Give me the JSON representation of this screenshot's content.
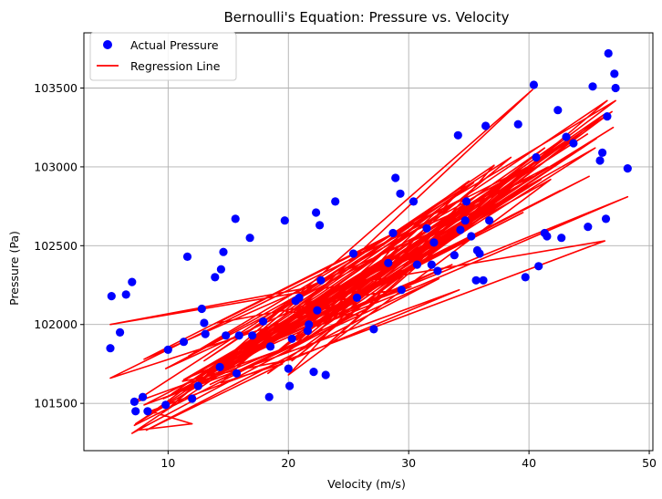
{
  "chart_data": {
    "type": "scatter",
    "title": "Bernoulli's Equation: Pressure vs. Velocity",
    "xlabel": "Velocity (m/s)",
    "ylabel": "Pressure (Pa)",
    "xlim": [
      3.0,
      50.3
    ],
    "ylim": [
      101200,
      103850
    ],
    "xticks": [
      10,
      20,
      30,
      40,
      50
    ],
    "yticks": [
      101500,
      102000,
      102500,
      103000,
      103500
    ],
    "grid": true,
    "legend_position": "top-left",
    "colors": {
      "points": "#0000ff",
      "line": "#ff0000"
    },
    "series": [
      {
        "name": "Actual Pressure",
        "kind": "scatter",
        "x": [
          5.2,
          5.3,
          6.0,
          6.5,
          7.0,
          7.2,
          7.3,
          7.9,
          8.3,
          9.8,
          10.0,
          11.3,
          11.6,
          12.0,
          12.5,
          12.8,
          13.0,
          13.1,
          13.9,
          14.3,
          14.4,
          14.6,
          14.8,
          15.6,
          15.7,
          15.9,
          16.8,
          17.0,
          17.9,
          18.4,
          18.5,
          19.7,
          20.0,
          20.1,
          20.3,
          20.6,
          20.9,
          21.6,
          21.7,
          22.1,
          22.3,
          22.4,
          22.6,
          22.7,
          23.1,
          23.9,
          25.4,
          25.7,
          27.1,
          28.3,
          28.7,
          28.9,
          29.3,
          29.4,
          30.4,
          30.7,
          31.5,
          31.9,
          32.1,
          32.4,
          33.8,
          34.1,
          34.3,
          34.7,
          34.8,
          35.2,
          35.6,
          35.7,
          35.9,
          36.2,
          36.4,
          36.7,
          39.1,
          39.7,
          40.4,
          40.6,
          40.8,
          41.3,
          41.5,
          42.4,
          42.7,
          43.1,
          43.7,
          44.9,
          45.3,
          45.9,
          46.1,
          46.4,
          46.5,
          46.6,
          47.1,
          47.2,
          48.2
        ],
        "y": [
          101850,
          102180,
          101950,
          102190,
          102270,
          101510,
          101450,
          101540,
          101450,
          101490,
          101840,
          101890,
          102430,
          101530,
          101610,
          102100,
          102010,
          101940,
          102300,
          101730,
          102350,
          102460,
          101930,
          102670,
          101690,
          101930,
          102550,
          101930,
          102020,
          101540,
          101860,
          102660,
          101720,
          101610,
          101910,
          102150,
          102170,
          101960,
          102000,
          101700,
          102710,
          102090,
          102630,
          102280,
          101680,
          102780,
          102450,
          102170,
          101970,
          102390,
          102580,
          102930,
          102830,
          102220,
          102780,
          102380,
          102610,
          102380,
          102520,
          102340,
          102440,
          103200,
          102600,
          102660,
          102780,
          102560,
          102280,
          102470,
          102450,
          102280,
          103260,
          102660,
          103270,
          102300,
          103520,
          103060,
          102370,
          102580,
          102560,
          103360,
          102550,
          103190,
          103150,
          102620,
          103510,
          103040,
          103090,
          102670,
          103320,
          103720,
          103590,
          103500,
          102990
        ]
      },
      {
        "name": "Regression Line",
        "kind": "line",
        "x": [
          7.5,
          12.0,
          8.5,
          46.3,
          5.2,
          22.1,
          10.2,
          40.3,
          14.4,
          19.5,
          8.2,
          32.5,
          13.5,
          26.5,
          11.4,
          7.0,
          46.9,
          25.6,
          17.3,
          41.3,
          20.7,
          35.7,
          15.5,
          10.3,
          46.5,
          28.4,
          18.3,
          38.8,
          11.2,
          20.3,
          34.2,
          8.0,
          45.0,
          26.3,
          15.6,
          47.0,
          14.2,
          40.5,
          22.3,
          13.6,
          28.6,
          7.3,
          39.6,
          19.8,
          32.5,
          14.1,
          36.2,
          21.8,
          9.6,
          42.6,
          16.2,
          48.2,
          31.0,
          22.4,
          33.6,
          11.3,
          40.7,
          29.5,
          22.5,
          7.2,
          35.0,
          20.0,
          41.8,
          15.0,
          34.5,
          8.0,
          31.5,
          42.5,
          23.2,
          38.4,
          21.6,
          46.2,
          20.3,
          41.2,
          14.1,
          30.2,
          22.7,
          41.0,
          13.9,
          35.6,
          20.0,
          45.5,
          18.6,
          32.6,
          9.8,
          41.6,
          25.1,
          5.2,
          32.0,
          14.3,
          39.5,
          12.6,
          43.6,
          28.8,
          20.8,
          7.0,
          38.5,
          19.1,
          45.6,
          25.6,
          47.2,
          11.7,
          40.2,
          24.0,
          31.4,
          13.0,
          37.1,
          26.0,
          19.8,
          35.4,
          17.2,
          44.9
        ],
        "y": [
          101330,
          101370,
          101450,
          102530,
          102000,
          102240,
          101480,
          103490,
          101630,
          101750,
          101330,
          102290,
          101620,
          102100,
          101490,
          101310,
          103350,
          102140,
          101840,
          103120,
          101900,
          102820,
          101730,
          101560,
          103420,
          102250,
          101690,
          102830,
          101640,
          101780,
          102220,
          101490,
          102940,
          102220,
          101750,
          103250,
          101700,
          102900,
          102000,
          101700,
          102440,
          101370,
          102870,
          101820,
          102730,
          101760,
          102810,
          101920,
          101530,
          102850,
          101820,
          102810,
          102250,
          101990,
          102380,
          101650,
          102950,
          102560,
          101950,
          101360,
          102910,
          101680,
          102920,
          101780,
          102800,
          101780,
          102570,
          103160,
          101870,
          102920,
          102040,
          103330,
          101770,
          103050,
          102010,
          102240,
          102030,
          102920,
          101730,
          102790,
          101880,
          103120,
          101960,
          102520,
          101720,
          103000,
          102150,
          101660,
          102670,
          101730,
          102710,
          101670,
          103180,
          102370,
          101880,
          101500,
          103060,
          101830,
          103180,
          102180,
          103420,
          101800,
          103010,
          102190,
          102690,
          101770,
          103010,
          102060,
          102080,
          102900,
          101850,
          103210
        ]
      }
    ]
  }
}
